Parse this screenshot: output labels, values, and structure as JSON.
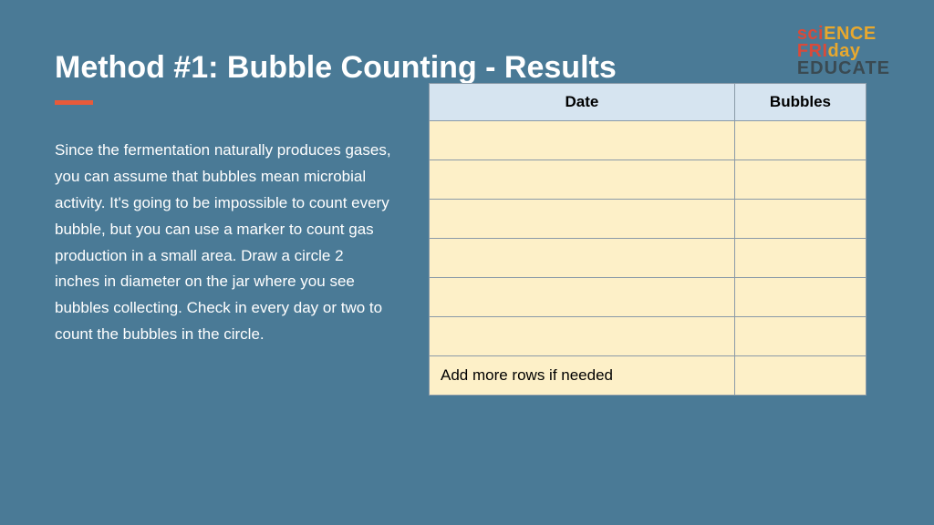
{
  "title": "Method #1: Bubble Counting - Results",
  "body": "Since the fermentation naturally produces gases, you can assume that bubbles mean microbial activity. It's going to be impossible to count every bubble, but you can use a marker to count gas production in a small area. Draw a circle 2 inches in diameter on the jar where you see bubbles collecting.  Check in every day or two to count the bubbles in the circle.",
  "table": {
    "columns": [
      "Date",
      "Bubbles"
    ],
    "rows": [
      [
        "",
        ""
      ],
      [
        "",
        ""
      ],
      [
        "",
        ""
      ],
      [
        "",
        ""
      ],
      [
        "",
        ""
      ],
      [
        "",
        ""
      ],
      [
        "Add more rows if needed",
        ""
      ]
    ],
    "header_bg": "#d6e4f0",
    "cell_bg": "#fdf0c8",
    "border_color": "#8a9aa8",
    "header_fontsize": 17,
    "cell_fontsize": 17
  },
  "accent_color": "#e85a3a",
  "background_color": "#4a7a96",
  "title_color": "#ffffff",
  "title_fontsize": 34,
  "body_color": "#ffffff",
  "body_fontsize": 17,
  "logo": {
    "line1a": "sci",
    "line1b": "ence",
    "line2a": "FRI",
    "line2b": "Day",
    "line3": "EDUCATE",
    "color_red": "#d94a3a",
    "color_gold": "#e8a82e",
    "color_dark": "#3a4a52"
  }
}
